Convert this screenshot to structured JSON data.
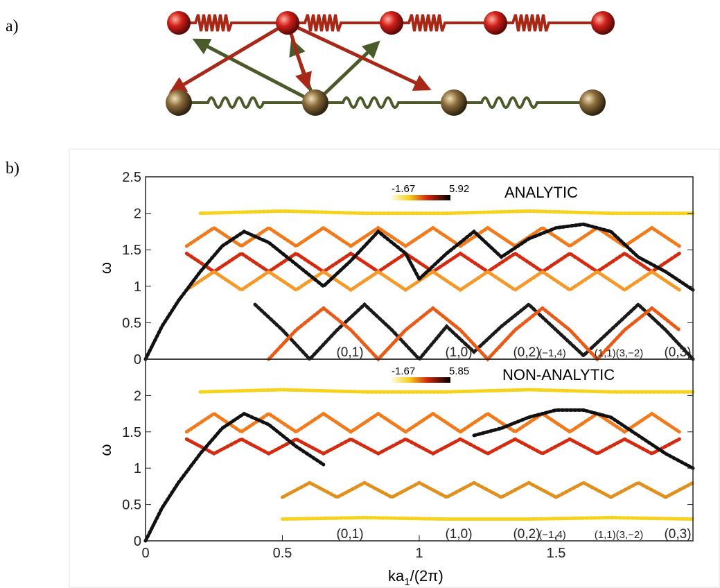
{
  "panel_labels": [
    "a)",
    "b)"
  ],
  "chart_data": [
    {
      "type": "line",
      "title": "ANALYTIC",
      "xlim": [
        0,
        2
      ],
      "ylim": [
        0,
        2.5
      ],
      "yticks": [
        0,
        0.5,
        1,
        1.5,
        2,
        2.5
      ],
      "ylabel": "ω",
      "clim": [
        -1.67,
        5.92
      ],
      "annotations": [
        "(0,1)",
        "(1,0)",
        "(0,2)",
        "(−1,4)",
        "(1,1)(3,−2)",
        "(0,3)"
      ],
      "series": [
        {
          "color": "#f6d21a",
          "x": [
            0.2,
            0.5,
            0.8,
            1.1,
            1.4,
            1.7,
            2.0
          ],
          "values": [
            2.0,
            2.03,
            2.0,
            2.0,
            2.03,
            2.0,
            2.0
          ]
        },
        {
          "color": "#f07a1c",
          "x": [
            0.15,
            0.25,
            0.35,
            0.45,
            0.55,
            0.65,
            0.75,
            0.85,
            0.95,
            1.05,
            1.15,
            1.25,
            1.35,
            1.45,
            1.55,
            1.65,
            1.75,
            1.85,
            1.95
          ],
          "values": [
            1.55,
            1.8,
            1.55,
            1.8,
            1.55,
            1.8,
            1.55,
            1.8,
            1.55,
            1.8,
            1.55,
            1.8,
            1.55,
            1.8,
            1.55,
            1.8,
            1.55,
            1.8,
            1.55
          ]
        },
        {
          "color": "#d42a10",
          "x": [
            0.15,
            0.25,
            0.35,
            0.45,
            0.55,
            0.65,
            0.75,
            0.85,
            0.95,
            1.05,
            1.15,
            1.25,
            1.35,
            1.45,
            1.55,
            1.65,
            1.75,
            1.85,
            1.95
          ],
          "values": [
            1.45,
            1.2,
            1.45,
            1.2,
            1.45,
            1.2,
            1.45,
            1.2,
            1.45,
            1.2,
            1.45,
            1.2,
            1.45,
            1.2,
            1.45,
            1.2,
            1.45,
            1.2,
            1.45
          ]
        },
        {
          "color": "#f39a2a",
          "x": [
            0.15,
            0.25,
            0.35,
            0.45,
            0.55,
            0.65,
            0.75,
            0.85,
            0.95,
            1.05,
            1.15,
            1.25,
            1.35,
            1.45,
            1.55,
            1.65,
            1.75,
            1.85,
            1.95
          ],
          "values": [
            0.95,
            1.2,
            0.95,
            1.2,
            0.95,
            1.2,
            0.95,
            1.2,
            0.95,
            1.2,
            0.95,
            1.2,
            0.95,
            1.2,
            0.95,
            1.2,
            0.95,
            1.2,
            0.95
          ]
        },
        {
          "color": "#111111",
          "x": [
            0,
            0.06,
            0.12,
            0.2,
            0.28,
            0.36,
            0.45,
            0.55,
            0.65,
            0.75,
            0.85,
            0.95,
            1.0
          ],
          "values": [
            0,
            0.45,
            0.8,
            1.2,
            1.55,
            1.75,
            1.6,
            1.3,
            1.0,
            1.35,
            1.75,
            1.45,
            1.1
          ]
        },
        {
          "color": "#111111",
          "x": [
            1.0,
            1.1,
            1.2,
            1.3,
            1.4,
            1.5,
            1.6,
            1.7,
            1.8,
            1.9,
            2.0
          ],
          "values": [
            1.1,
            1.45,
            1.75,
            1.4,
            1.65,
            1.8,
            1.85,
            1.75,
            1.4,
            1.2,
            0.95
          ]
        },
        {
          "color": "#1a1a1a",
          "x": [
            0.4,
            0.5,
            0.6,
            0.7,
            0.8,
            0.9,
            1.0,
            1.1,
            1.2,
            1.3,
            1.4,
            1.5,
            1.6,
            1.7,
            1.8,
            1.9,
            2.0
          ],
          "values": [
            0.75,
            0.4,
            0,
            0.4,
            0.75,
            0.4,
            0,
            0.45,
            0.1,
            0.45,
            0.75,
            0.4,
            0.05,
            0.4,
            0.75,
            0.4,
            0
          ]
        },
        {
          "color": "#e85a18",
          "x": [
            0.45,
            0.55,
            0.65,
            0.75,
            0.85,
            0.95,
            1.05,
            1.15,
            1.25,
            1.35,
            1.45,
            1.55,
            1.65,
            1.75,
            1.85,
            1.95
          ],
          "values": [
            0,
            0.4,
            0.7,
            0.4,
            0,
            0.4,
            0.7,
            0.4,
            0,
            0.4,
            0.7,
            0.4,
            0,
            0.4,
            0.7,
            0.4
          ]
        }
      ]
    },
    {
      "type": "line",
      "title": "NON-ANALYTIC",
      "xlim": [
        0,
        2
      ],
      "ylim": [
        0,
        2.5
      ],
      "yticks": [
        0,
        0.5,
        1,
        1.5,
        2
      ],
      "xticks": [
        0,
        0.5,
        1,
        1.5
      ],
      "ylabel": "ω",
      "xlabel": [
        "ka",
        "1",
        "/(2π)"
      ],
      "clim": [
        -1.67,
        5.85
      ],
      "annotations": [
        "(0,1)",
        "(1,0)",
        "(0,2)",
        "(−1,4)",
        "(1,1)(3,−2)",
        "(0,3)"
      ],
      "series": [
        {
          "color": "#f6d21a",
          "x": [
            0.2,
            0.5,
            0.8,
            1.1,
            1.4,
            1.7,
            2.0
          ],
          "values": [
            2.05,
            2.08,
            2.05,
            2.05,
            2.08,
            2.05,
            2.05
          ]
        },
        {
          "color": "#f6d21a",
          "x": [
            0.5,
            0.8,
            1.1,
            1.4,
            1.7,
            2.0
          ],
          "values": [
            0.3,
            0.32,
            0.3,
            0.3,
            0.32,
            0.3
          ]
        },
        {
          "color": "#f07a1c",
          "x": [
            0.15,
            0.25,
            0.35,
            0.45,
            0.55,
            0.65,
            0.75,
            0.85,
            0.95,
            1.05,
            1.15,
            1.25,
            1.35,
            1.45,
            1.55,
            1.65,
            1.75,
            1.85,
            1.95
          ],
          "values": [
            1.5,
            1.75,
            1.5,
            1.75,
            1.5,
            1.75,
            1.5,
            1.75,
            1.5,
            1.75,
            1.5,
            1.75,
            1.5,
            1.75,
            1.5,
            1.75,
            1.5,
            1.75,
            1.5
          ]
        },
        {
          "color": "#d42a10",
          "x": [
            0.15,
            0.25,
            0.35,
            0.45,
            0.55,
            0.65,
            0.75,
            0.85,
            0.95,
            1.05,
            1.15,
            1.25,
            1.35,
            1.45,
            1.55,
            1.65,
            1.75,
            1.85,
            1.95
          ],
          "values": [
            1.4,
            1.2,
            1.4,
            1.2,
            1.4,
            1.2,
            1.4,
            1.2,
            1.4,
            1.2,
            1.4,
            1.2,
            1.4,
            1.2,
            1.4,
            1.2,
            1.4,
            1.2,
            1.4
          ]
        },
        {
          "color": "#111111",
          "x": [
            0,
            0.06,
            0.12,
            0.2,
            0.28,
            0.36,
            0.45,
            0.55,
            0.65
          ],
          "values": [
            0,
            0.45,
            0.8,
            1.2,
            1.55,
            1.75,
            1.6,
            1.3,
            1.05
          ]
        },
        {
          "color": "#111111",
          "x": [
            1.2,
            1.3,
            1.4,
            1.5,
            1.6,
            1.7,
            1.8,
            1.9,
            2.0
          ],
          "values": [
            1.45,
            1.55,
            1.7,
            1.8,
            1.8,
            1.7,
            1.45,
            1.2,
            1.0
          ]
        },
        {
          "color": "#e0901c",
          "x": [
            0.5,
            0.6,
            0.7,
            0.8,
            0.9,
            1.0,
            1.1,
            1.2,
            1.3,
            1.4,
            1.5,
            1.6,
            1.7,
            1.8,
            1.9,
            2.0
          ],
          "values": [
            0.6,
            0.8,
            0.6,
            0.8,
            0.6,
            0.8,
            0.6,
            0.8,
            0.6,
            0.8,
            0.6,
            0.8,
            0.6,
            0.8,
            0.6,
            0.8
          ]
        }
      ]
    }
  ]
}
